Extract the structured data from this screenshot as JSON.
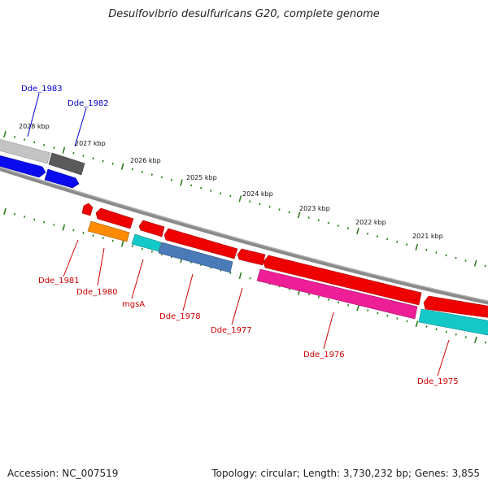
{
  "map": {
    "title": "Desulfovibrio desulfuricans G20, complete genome",
    "accession": "Accession: NC_007519",
    "topology": "Topology: circular; Length: 3,730,232 bp; Genes: 3,855"
  },
  "colors": {
    "backbone": "#808080",
    "tick": "#2e7d1e",
    "label_forward": "#0000cc",
    "label_reverse": "#cc0000",
    "gene_blue": "#0000ee",
    "gene_gray": "#bdbdbd",
    "gene_darkgray": "#5a5a5a",
    "gene_red": "#ee0000",
    "gene_orange": "#ff8c00",
    "gene_cyan": "#14c8c8",
    "gene_steelblue": "#4a7ab8",
    "gene_magenta": "#ee1e96"
  },
  "kbp_markers": [
    {
      "label": "2028 kbp",
      "value": 2028
    },
    {
      "label": "2027 kbp",
      "value": 2027
    },
    {
      "label": "2026 kbp",
      "value": 2026
    },
    {
      "label": "2025 kbp",
      "value": 2025
    },
    {
      "label": "2024 kbp",
      "value": 2024
    },
    {
      "label": "2023 kbp",
      "value": 2023
    },
    {
      "label": "2022 kbp",
      "value": 2022
    },
    {
      "label": "2021 kbp",
      "value": 2021
    }
  ],
  "genes": {
    "forward": [
      {
        "label": "Dde_1983",
        "color": "gene_blue"
      },
      {
        "label": "Dde_1982",
        "color": "gene_blue"
      }
    ],
    "reverse": [
      {
        "label": "Dde_1981",
        "color": "gene_red"
      },
      {
        "label": "Dde_1980",
        "color": "gene_orange"
      },
      {
        "label": "mgsA",
        "color": "gene_cyan"
      },
      {
        "label": "Dde_1978",
        "color": "gene_steelblue"
      },
      {
        "label": "Dde_1977",
        "color": "gene_red"
      },
      {
        "label": "Dde_1976",
        "color": "gene_magenta"
      },
      {
        "label": "Dde_1975",
        "color": "gene_cyan"
      }
    ]
  }
}
